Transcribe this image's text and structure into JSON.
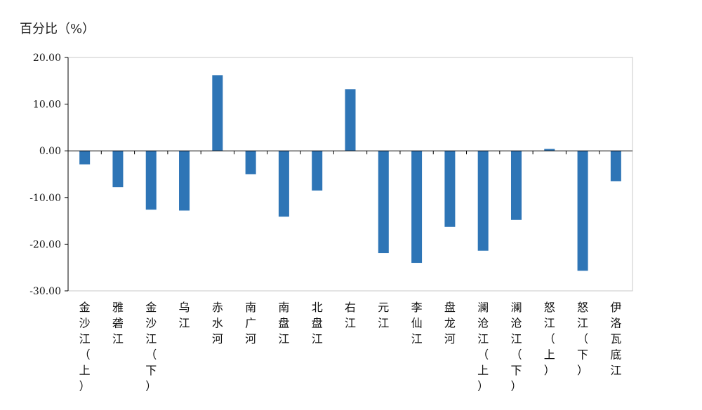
{
  "chart_data": {
    "type": "bar",
    "ylabel": "百分比（%）",
    "ylim": [
      -30,
      20
    ],
    "yticks": [
      20,
      10,
      0,
      -10,
      -20,
      -30
    ],
    "ytick_labels": [
      "20.00",
      "10.00",
      "0.00",
      "-10.00",
      "-20.00",
      "-30.00"
    ],
    "categories": [
      "金沙江（上）",
      "雅砻江",
      "金沙江（下）",
      "乌江",
      "赤水河",
      "南广河",
      "南盘江",
      "北盘江",
      "右江",
      "元江",
      "李仙江",
      "盘龙河",
      "澜沧江（上）",
      "澜沧江（下）",
      "怒江（上）",
      "怒江（下）",
      "伊洛瓦底江"
    ],
    "values": [
      -2.9,
      -7.8,
      -12.6,
      -12.8,
      16.2,
      -5.0,
      -14.1,
      -8.5,
      13.2,
      -21.9,
      -24.0,
      -16.3,
      -21.4,
      -14.8,
      0.4,
      -25.7,
      -6.5
    ],
    "bar_color": "#2e75b6",
    "grid": false,
    "legend": "none"
  }
}
